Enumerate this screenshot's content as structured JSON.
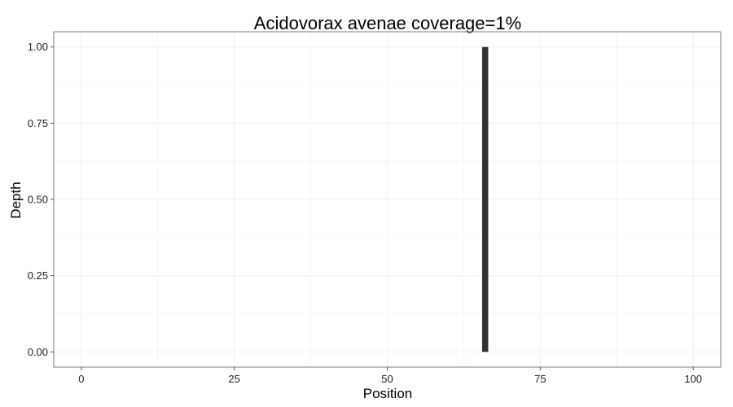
{
  "chart_data": {
    "type": "bar",
    "title": "Acidovorax avenae coverage=1%",
    "xlabel": "Position",
    "ylabel": "Depth",
    "x": [
      66
    ],
    "values": [
      1.0
    ],
    "xlim": [
      -4.5,
      104.5
    ],
    "ylim": [
      -0.05,
      1.05
    ],
    "xticks": [
      0,
      25,
      50,
      75,
      100
    ],
    "xtick_labels": [
      "0",
      "25",
      "50",
      "75",
      "100"
    ],
    "yticks": [
      0,
      0.25,
      0.5,
      0.75,
      1.0
    ],
    "ytick_labels": [
      "0.00",
      "0.25",
      "0.50",
      "0.75",
      "1.00"
    ],
    "grid": true,
    "colors": {
      "bar": "#333333",
      "grid": "#f0f0f0",
      "panel_border": "#7f7f7f"
    }
  }
}
